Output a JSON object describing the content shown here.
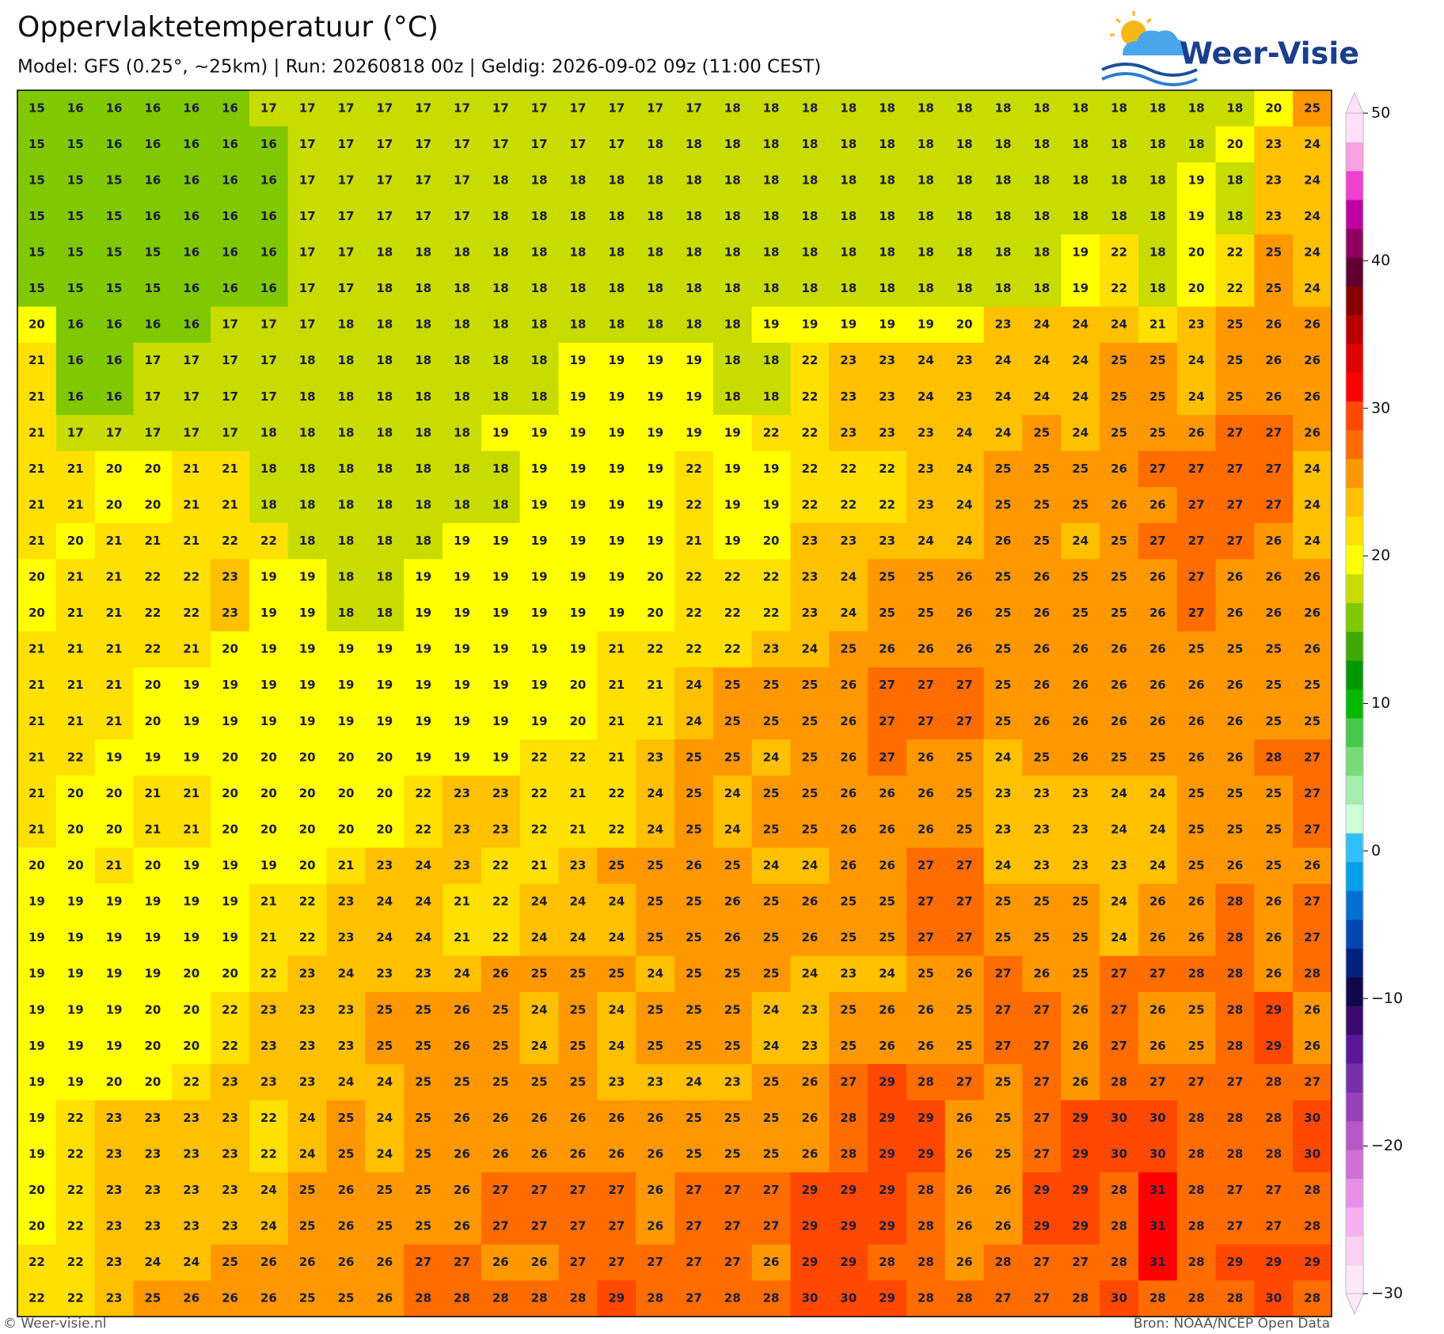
{
  "header": {
    "title": "Oppervlaktetemperatuur (°C)",
    "subtitle": "Model: GFS (0.25°, ~25km)  |  Run: 20260818 00z  |  Geldig: 2026-09-02 09z (11:00 CEST)",
    "logo": "Weer-Visie"
  },
  "footer": {
    "left": "© Weer-visie.nl",
    "right": "Bron: NOAA/NCEP Open Data"
  },
  "colorbar": {
    "lim": [
      -30,
      50
    ],
    "ticks": [
      50,
      40,
      30,
      20,
      10,
      0,
      {
        "value": -10,
        "label": "−10"
      },
      {
        "value": -20,
        "label": "−20"
      },
      {
        "value": -30,
        "label": "−30"
      }
    ],
    "colors": [
      "#fde8f8",
      "#fcd0f4",
      "#f8b0ee",
      "#e890e8",
      "#d070d8",
      "#b858c8",
      "#9840b8",
      "#7830a8",
      "#5a1898",
      "#3c0a70",
      "#100848",
      "#002080",
      "#0048b0",
      "#0070d0",
      "#00a0e8",
      "#30c0f8",
      "#ccffd8",
      "#a8ecb0",
      "#78dc78",
      "#48c848",
      "#00b800",
      "#009800",
      "#40a800",
      "#80c800",
      "#c8dc00",
      "#ffff00",
      "#ffe000",
      "#ffc000",
      "#ff9800",
      "#ff6c00",
      "#ff4800",
      "#ff0000",
      "#e00000",
      "#b80000",
      "#880000",
      "#600030",
      "#900060",
      "#c000a0",
      "#f040d0",
      "#f8a0e0",
      "#ffe0f8"
    ]
  },
  "grid": {
    "rows": [
      [
        15,
        16,
        16,
        16,
        16,
        16,
        17,
        17,
        17,
        17,
        17,
        17,
        17,
        17,
        17,
        17,
        17,
        17,
        18,
        18,
        18,
        18,
        18,
        18,
        18,
        18,
        18,
        18,
        18,
        18,
        18,
        18,
        20,
        25
      ],
      [
        15,
        15,
        16,
        16,
        16,
        16,
        16,
        17,
        17,
        17,
        17,
        17,
        17,
        17,
        17,
        17,
        18,
        18,
        18,
        18,
        18,
        18,
        18,
        18,
        18,
        18,
        18,
        18,
        18,
        18,
        18,
        20,
        23,
        24
      ],
      [
        15,
        15,
        15,
        16,
        16,
        16,
        16,
        17,
        17,
        17,
        17,
        17,
        18,
        18,
        18,
        18,
        18,
        18,
        18,
        18,
        18,
        18,
        18,
        18,
        18,
        18,
        18,
        18,
        18,
        18,
        19,
        18,
        23,
        24
      ],
      [
        15,
        15,
        15,
        16,
        16,
        16,
        16,
        17,
        17,
        17,
        17,
        17,
        18,
        18,
        18,
        18,
        18,
        18,
        18,
        18,
        18,
        18,
        18,
        18,
        18,
        18,
        18,
        18,
        18,
        18,
        19,
        18,
        23,
        24
      ],
      [
        15,
        15,
        15,
        15,
        16,
        16,
        16,
        17,
        17,
        18,
        18,
        18,
        18,
        18,
        18,
        18,
        18,
        18,
        18,
        18,
        18,
        18,
        18,
        18,
        18,
        18,
        18,
        19,
        22,
        18,
        20,
        22,
        25,
        24
      ],
      [
        15,
        15,
        15,
        15,
        16,
        16,
        16,
        17,
        17,
        18,
        18,
        18,
        18,
        18,
        18,
        18,
        18,
        18,
        18,
        18,
        18,
        18,
        18,
        18,
        18,
        18,
        18,
        19,
        22,
        18,
        20,
        22,
        25,
        24
      ],
      [
        20,
        16,
        16,
        16,
        16,
        17,
        17,
        17,
        18,
        18,
        18,
        18,
        18,
        18,
        18,
        18,
        18,
        18,
        18,
        19,
        19,
        19,
        19,
        19,
        20,
        23,
        24,
        24,
        24,
        21,
        23,
        25,
        26,
        26
      ],
      [
        21,
        16,
        16,
        17,
        17,
        17,
        17,
        18,
        18,
        18,
        18,
        18,
        18,
        18,
        19,
        19,
        19,
        19,
        18,
        18,
        22,
        23,
        23,
        24,
        23,
        24,
        24,
        24,
        25,
        25,
        24,
        25,
        26,
        26
      ],
      [
        21,
        16,
        16,
        17,
        17,
        17,
        17,
        18,
        18,
        18,
        18,
        18,
        18,
        18,
        19,
        19,
        19,
        19,
        18,
        18,
        22,
        23,
        23,
        24,
        23,
        24,
        24,
        24,
        25,
        25,
        24,
        25,
        26,
        26
      ],
      [
        21,
        17,
        17,
        17,
        17,
        17,
        18,
        18,
        18,
        18,
        18,
        18,
        19,
        19,
        19,
        19,
        19,
        19,
        19,
        22,
        22,
        23,
        23,
        23,
        24,
        24,
        25,
        24,
        25,
        25,
        26,
        27,
        27,
        26
      ],
      [
        21,
        21,
        20,
        20,
        21,
        21,
        18,
        18,
        18,
        18,
        18,
        18,
        18,
        19,
        19,
        19,
        19,
        22,
        19,
        19,
        22,
        22,
        22,
        23,
        24,
        25,
        25,
        25,
        26,
        27,
        27,
        27,
        27,
        24
      ],
      [
        21,
        21,
        20,
        20,
        21,
        21,
        18,
        18,
        18,
        18,
        18,
        18,
        18,
        19,
        19,
        19,
        19,
        22,
        19,
        19,
        22,
        22,
        22,
        23,
        24,
        25,
        25,
        25,
        26,
        26,
        27,
        27,
        27,
        24
      ],
      [
        21,
        20,
        21,
        21,
        21,
        22,
        22,
        18,
        18,
        18,
        18,
        19,
        19,
        19,
        19,
        19,
        19,
        21,
        19,
        20,
        23,
        23,
        23,
        24,
        24,
        26,
        25,
        24,
        25,
        27,
        27,
        27,
        26,
        24
      ],
      [
        20,
        21,
        21,
        22,
        22,
        23,
        19,
        19,
        18,
        18,
        19,
        19,
        19,
        19,
        19,
        19,
        20,
        22,
        22,
        22,
        23,
        24,
        25,
        25,
        26,
        25,
        26,
        25,
        25,
        26,
        27,
        26,
        26,
        26
      ],
      [
        20,
        21,
        21,
        22,
        22,
        23,
        19,
        19,
        18,
        18,
        19,
        19,
        19,
        19,
        19,
        19,
        20,
        22,
        22,
        22,
        23,
        24,
        25,
        25,
        26,
        25,
        26,
        25,
        25,
        26,
        27,
        26,
        26,
        26
      ],
      [
        21,
        21,
        21,
        22,
        21,
        20,
        19,
        19,
        19,
        19,
        19,
        19,
        19,
        19,
        19,
        21,
        22,
        22,
        22,
        23,
        24,
        25,
        26,
        26,
        26,
        25,
        26,
        26,
        26,
        26,
        25,
        25,
        25,
        26
      ],
      [
        21,
        21,
        21,
        20,
        19,
        19,
        19,
        19,
        19,
        19,
        19,
        19,
        19,
        19,
        20,
        21,
        21,
        24,
        25,
        25,
        25,
        26,
        27,
        27,
        27,
        25,
        26,
        26,
        26,
        26,
        26,
        26,
        25,
        25
      ],
      [
        21,
        21,
        21,
        20,
        19,
        19,
        19,
        19,
        19,
        19,
        19,
        19,
        19,
        19,
        20,
        21,
        21,
        24,
        25,
        25,
        25,
        26,
        27,
        27,
        27,
        25,
        26,
        26,
        26,
        26,
        26,
        26,
        25,
        25
      ],
      [
        21,
        22,
        19,
        19,
        19,
        20,
        20,
        20,
        20,
        20,
        19,
        19,
        19,
        22,
        22,
        21,
        23,
        25,
        25,
        24,
        25,
        26,
        27,
        26,
        25,
        24,
        25,
        26,
        25,
        25,
        26,
        26,
        28,
        27
      ],
      [
        21,
        20,
        20,
        21,
        21,
        20,
        20,
        20,
        20,
        20,
        22,
        23,
        23,
        22,
        21,
        22,
        24,
        25,
        24,
        25,
        25,
        26,
        26,
        26,
        25,
        23,
        23,
        23,
        24,
        24,
        25,
        25,
        25,
        27
      ],
      [
        21,
        20,
        20,
        21,
        21,
        20,
        20,
        20,
        20,
        20,
        22,
        23,
        23,
        22,
        21,
        22,
        24,
        25,
        24,
        25,
        25,
        26,
        26,
        26,
        25,
        23,
        23,
        23,
        24,
        24,
        25,
        25,
        25,
        27
      ],
      [
        20,
        20,
        21,
        20,
        19,
        19,
        19,
        20,
        21,
        23,
        24,
        23,
        22,
        21,
        23,
        25,
        25,
        26,
        25,
        24,
        24,
        26,
        26,
        27,
        27,
        24,
        23,
        23,
        23,
        24,
        25,
        26,
        25,
        26
      ],
      [
        19,
        19,
        19,
        19,
        19,
        19,
        21,
        22,
        23,
        24,
        24,
        21,
        22,
        24,
        24,
        24,
        25,
        25,
        26,
        25,
        26,
        25,
        25,
        27,
        27,
        25,
        25,
        25,
        24,
        26,
        26,
        28,
        26,
        27
      ],
      [
        19,
        19,
        19,
        19,
        19,
        19,
        21,
        22,
        23,
        24,
        24,
        21,
        22,
        24,
        24,
        24,
        25,
        25,
        26,
        25,
        26,
        25,
        25,
        27,
        27,
        25,
        25,
        25,
        24,
        26,
        26,
        28,
        26,
        27
      ],
      [
        19,
        19,
        19,
        19,
        20,
        20,
        22,
        23,
        24,
        23,
        23,
        24,
        26,
        25,
        25,
        25,
        24,
        25,
        25,
        25,
        24,
        23,
        24,
        25,
        26,
        27,
        26,
        25,
        27,
        27,
        28,
        28,
        26,
        28
      ],
      [
        19,
        19,
        19,
        20,
        20,
        22,
        23,
        23,
        23,
        25,
        25,
        26,
        25,
        24,
        25,
        24,
        25,
        25,
        25,
        24,
        23,
        25,
        26,
        26,
        25,
        27,
        27,
        26,
        27,
        26,
        25,
        28,
        29,
        26
      ],
      [
        19,
        19,
        19,
        20,
        20,
        22,
        23,
        23,
        23,
        25,
        25,
        26,
        25,
        24,
        25,
        24,
        25,
        25,
        25,
        24,
        23,
        25,
        26,
        26,
        25,
        27,
        27,
        26,
        27,
        26,
        25,
        28,
        29,
        26
      ],
      [
        19,
        19,
        20,
        20,
        22,
        23,
        23,
        23,
        24,
        24,
        25,
        25,
        25,
        25,
        25,
        23,
        23,
        24,
        23,
        25,
        26,
        27,
        29,
        28,
        27,
        25,
        27,
        26,
        28,
        27,
        27,
        27,
        28,
        27
      ],
      [
        19,
        22,
        23,
        23,
        23,
        23,
        22,
        24,
        25,
        24,
        25,
        26,
        26,
        26,
        26,
        26,
        26,
        25,
        25,
        25,
        26,
        28,
        29,
        29,
        26,
        25,
        27,
        29,
        30,
        30,
        28,
        28,
        28,
        30
      ],
      [
        19,
        22,
        23,
        23,
        23,
        23,
        22,
        24,
        25,
        24,
        25,
        26,
        26,
        26,
        26,
        26,
        26,
        25,
        25,
        25,
        26,
        28,
        29,
        29,
        26,
        25,
        27,
        29,
        30,
        30,
        28,
        28,
        28,
        30
      ],
      [
        20,
        22,
        23,
        23,
        23,
        23,
        24,
        25,
        26,
        25,
        25,
        26,
        27,
        27,
        27,
        27,
        26,
        27,
        27,
        27,
        29,
        29,
        29,
        28,
        26,
        26,
        29,
        29,
        28,
        31,
        28,
        27,
        27,
        28
      ],
      [
        20,
        22,
        23,
        23,
        23,
        23,
        24,
        25,
        26,
        25,
        25,
        26,
        27,
        27,
        27,
        27,
        26,
        27,
        27,
        27,
        29,
        29,
        29,
        28,
        26,
        26,
        29,
        29,
        28,
        31,
        28,
        27,
        27,
        28
      ],
      [
        22,
        22,
        23,
        24,
        24,
        25,
        26,
        26,
        26,
        26,
        27,
        27,
        26,
        26,
        27,
        27,
        27,
        27,
        27,
        26,
        29,
        29,
        28,
        28,
        26,
        28,
        27,
        27,
        28,
        31,
        28,
        29,
        29,
        29
      ],
      [
        22,
        22,
        23,
        25,
        26,
        26,
        26,
        25,
        25,
        26,
        28,
        28,
        28,
        28,
        28,
        29,
        28,
        27,
        28,
        28,
        30,
        30,
        29,
        28,
        28,
        27,
        27,
        28,
        30,
        28,
        28,
        28,
        30,
        28
      ]
    ]
  }
}
